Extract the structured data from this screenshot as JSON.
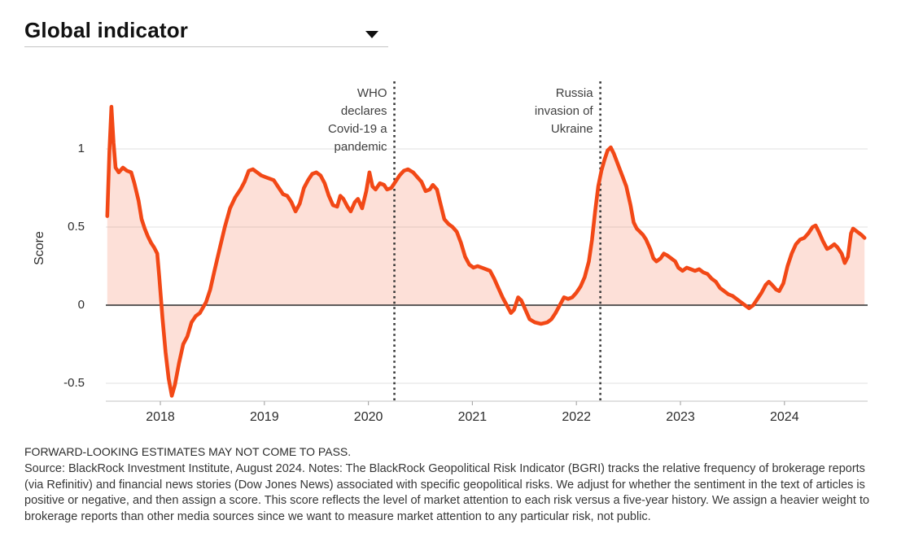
{
  "header": {
    "title": "Global indicator"
  },
  "footer": {
    "disclaimer": "FORWARD-LOOKING ESTIMATES MAY NOT COME TO PASS.",
    "notes": "Source: BlackRock Investment Institute, August 2024. Notes: The BlackRock Geopolitical Risk Indicator (BGRI) tracks the relative frequency of brokerage reports (via Refinitiv) and financial news stories (Dow Jones News) associated with specific geopolitical risks. We adjust for whether the sentiment in the text of articles is positive or negative, and then assign a score. This score reflects the level of market attention to each risk versus a five-year history. We assign a heavier weight to brokerage reports than other media sources since we want to measure market attention to any particular risk, not public."
  },
  "chart_data": {
    "type": "area",
    "title": "Global indicator",
    "xlabel": "",
    "ylabel": "Score",
    "x_range": [
      2017.45,
      2024.85
    ],
    "y_range": [
      -0.62,
      1.44
    ],
    "grid": "horizontal",
    "legend_position": "none",
    "x_ticks": [
      2018,
      2019,
      2020,
      2021,
      2022,
      2023,
      2024
    ],
    "y_ticks": [
      {
        "label": "1",
        "value": 1
      },
      {
        "label": "0.5",
        "value": 0.5
      },
      {
        "label": "0",
        "value": 0
      },
      {
        "label": "-0.5",
        "value": -0.5
      }
    ],
    "line_color": "#f24816",
    "fill_opacity": 0.17,
    "annotations": [
      {
        "label": "WHO\ndeclares\nCovid-19 a\npandemic",
        "x": 2020.25
      },
      {
        "label": "Russia\ninvasion of\nUkraine",
        "x": 2022.23
      }
    ],
    "series": [
      {
        "name": "Global indicator",
        "points": [
          [
            2017.49,
            0.57
          ],
          [
            2017.51,
            0.98
          ],
          [
            2017.53,
            1.27
          ],
          [
            2017.55,
            1.04
          ],
          [
            2017.57,
            0.88
          ],
          [
            2017.6,
            0.85
          ],
          [
            2017.64,
            0.88
          ],
          [
            2017.68,
            0.86
          ],
          [
            2017.72,
            0.85
          ],
          [
            2017.75,
            0.78
          ],
          [
            2017.79,
            0.67
          ],
          [
            2017.82,
            0.55
          ],
          [
            2017.85,
            0.49
          ],
          [
            2017.88,
            0.44
          ],
          [
            2017.91,
            0.4
          ],
          [
            2017.94,
            0.37
          ],
          [
            2017.97,
            0.33
          ],
          [
            2017.99,
            0.18
          ],
          [
            2018.02,
            -0.08
          ],
          [
            2018.05,
            -0.3
          ],
          [
            2018.08,
            -0.47
          ],
          [
            2018.11,
            -0.58
          ],
          [
            2018.14,
            -0.51
          ],
          [
            2018.18,
            -0.37
          ],
          [
            2018.22,
            -0.25
          ],
          [
            2018.26,
            -0.2
          ],
          [
            2018.3,
            -0.11
          ],
          [
            2018.34,
            -0.07
          ],
          [
            2018.38,
            -0.05
          ],
          [
            2018.44,
            0.02
          ],
          [
            2018.48,
            0.1
          ],
          [
            2018.52,
            0.22
          ],
          [
            2018.57,
            0.36
          ],
          [
            2018.62,
            0.5
          ],
          [
            2018.67,
            0.62
          ],
          [
            2018.72,
            0.69
          ],
          [
            2018.77,
            0.74
          ],
          [
            2018.81,
            0.79
          ],
          [
            2018.85,
            0.86
          ],
          [
            2018.89,
            0.87
          ],
          [
            2018.93,
            0.85
          ],
          [
            2018.97,
            0.83
          ],
          [
            2019.01,
            0.82
          ],
          [
            2019.05,
            0.81
          ],
          [
            2019.09,
            0.8
          ],
          [
            2019.13,
            0.76
          ],
          [
            2019.18,
            0.71
          ],
          [
            2019.22,
            0.7
          ],
          [
            2019.26,
            0.66
          ],
          [
            2019.3,
            0.6
          ],
          [
            2019.34,
            0.65
          ],
          [
            2019.38,
            0.75
          ],
          [
            2019.42,
            0.8
          ],
          [
            2019.46,
            0.84
          ],
          [
            2019.5,
            0.85
          ],
          [
            2019.54,
            0.83
          ],
          [
            2019.58,
            0.78
          ],
          [
            2019.62,
            0.7
          ],
          [
            2019.66,
            0.64
          ],
          [
            2019.7,
            0.63
          ],
          [
            2019.73,
            0.7
          ],
          [
            2019.76,
            0.68
          ],
          [
            2019.8,
            0.63
          ],
          [
            2019.83,
            0.6
          ],
          [
            2019.87,
            0.66
          ],
          [
            2019.9,
            0.68
          ],
          [
            2019.94,
            0.62
          ],
          [
            2019.98,
            0.73
          ],
          [
            2020.01,
            0.85
          ],
          [
            2020.04,
            0.76
          ],
          [
            2020.07,
            0.74
          ],
          [
            2020.11,
            0.78
          ],
          [
            2020.15,
            0.77
          ],
          [
            2020.18,
            0.74
          ],
          [
            2020.22,
            0.75
          ],
          [
            2020.26,
            0.79
          ],
          [
            2020.3,
            0.83
          ],
          [
            2020.34,
            0.86
          ],
          [
            2020.38,
            0.87
          ],
          [
            2020.43,
            0.85
          ],
          [
            2020.47,
            0.82
          ],
          [
            2020.51,
            0.79
          ],
          [
            2020.55,
            0.73
          ],
          [
            2020.59,
            0.74
          ],
          [
            2020.62,
            0.77
          ],
          [
            2020.66,
            0.74
          ],
          [
            2020.7,
            0.63
          ],
          [
            2020.73,
            0.55
          ],
          [
            2020.77,
            0.52
          ],
          [
            2020.81,
            0.5
          ],
          [
            2020.85,
            0.47
          ],
          [
            2020.89,
            0.4
          ],
          [
            2020.93,
            0.31
          ],
          [
            2020.97,
            0.26
          ],
          [
            2021.01,
            0.24
          ],
          [
            2021.05,
            0.25
          ],
          [
            2021.09,
            0.24
          ],
          [
            2021.13,
            0.23
          ],
          [
            2021.17,
            0.22
          ],
          [
            2021.21,
            0.17
          ],
          [
            2021.25,
            0.11
          ],
          [
            2021.29,
            0.05
          ],
          [
            2021.33,
            0.0
          ],
          [
            2021.37,
            -0.05
          ],
          [
            2021.4,
            -0.03
          ],
          [
            2021.44,
            0.05
          ],
          [
            2021.47,
            0.03
          ],
          [
            2021.51,
            -0.03
          ],
          [
            2021.55,
            -0.09
          ],
          [
            2021.6,
            -0.11
          ],
          [
            2021.66,
            -0.12
          ],
          [
            2021.72,
            -0.11
          ],
          [
            2021.76,
            -0.09
          ],
          [
            2021.8,
            -0.05
          ],
          [
            2021.84,
            0.0
          ],
          [
            2021.88,
            0.05
          ],
          [
            2021.92,
            0.04
          ],
          [
            2021.96,
            0.05
          ],
          [
            2022.0,
            0.08
          ],
          [
            2022.04,
            0.12
          ],
          [
            2022.08,
            0.18
          ],
          [
            2022.12,
            0.28
          ],
          [
            2022.15,
            0.42
          ],
          [
            2022.18,
            0.6
          ],
          [
            2022.21,
            0.76
          ],
          [
            2022.24,
            0.86
          ],
          [
            2022.27,
            0.93
          ],
          [
            2022.3,
            0.99
          ],
          [
            2022.33,
            1.01
          ],
          [
            2022.36,
            0.97
          ],
          [
            2022.4,
            0.9
          ],
          [
            2022.44,
            0.83
          ],
          [
            2022.48,
            0.76
          ],
          [
            2022.52,
            0.64
          ],
          [
            2022.55,
            0.53
          ],
          [
            2022.58,
            0.49
          ],
          [
            2022.61,
            0.47
          ],
          [
            2022.64,
            0.45
          ],
          [
            2022.67,
            0.42
          ],
          [
            2022.71,
            0.36
          ],
          [
            2022.74,
            0.3
          ],
          [
            2022.77,
            0.28
          ],
          [
            2022.81,
            0.3
          ],
          [
            2022.84,
            0.33
          ],
          [
            2022.87,
            0.32
          ],
          [
            2022.91,
            0.3
          ],
          [
            2022.95,
            0.28
          ],
          [
            2022.98,
            0.24
          ],
          [
            2023.02,
            0.22
          ],
          [
            2023.06,
            0.24
          ],
          [
            2023.1,
            0.23
          ],
          [
            2023.14,
            0.22
          ],
          [
            2023.18,
            0.23
          ],
          [
            2023.22,
            0.21
          ],
          [
            2023.26,
            0.2
          ],
          [
            2023.3,
            0.17
          ],
          [
            2023.34,
            0.15
          ],
          [
            2023.38,
            0.11
          ],
          [
            2023.42,
            0.09
          ],
          [
            2023.46,
            0.07
          ],
          [
            2023.5,
            0.06
          ],
          [
            2023.54,
            0.04
          ],
          [
            2023.58,
            0.02
          ],
          [
            2023.62,
            0.0
          ],
          [
            2023.66,
            -0.02
          ],
          [
            2023.7,
            0.0
          ],
          [
            2023.74,
            0.04
          ],
          [
            2023.78,
            0.08
          ],
          [
            2023.82,
            0.13
          ],
          [
            2023.85,
            0.15
          ],
          [
            2023.88,
            0.13
          ],
          [
            2023.92,
            0.1
          ],
          [
            2023.95,
            0.09
          ],
          [
            2023.99,
            0.14
          ],
          [
            2024.03,
            0.25
          ],
          [
            2024.07,
            0.33
          ],
          [
            2024.11,
            0.39
          ],
          [
            2024.15,
            0.42
          ],
          [
            2024.19,
            0.43
          ],
          [
            2024.23,
            0.46
          ],
          [
            2024.27,
            0.5
          ],
          [
            2024.3,
            0.51
          ],
          [
            2024.33,
            0.47
          ],
          [
            2024.37,
            0.41
          ],
          [
            2024.41,
            0.36
          ],
          [
            2024.44,
            0.37
          ],
          [
            2024.48,
            0.39
          ],
          [
            2024.51,
            0.37
          ],
          [
            2024.55,
            0.33
          ],
          [
            2024.58,
            0.27
          ],
          [
            2024.61,
            0.31
          ],
          [
            2024.64,
            0.46
          ],
          [
            2024.66,
            0.49
          ],
          [
            2024.7,
            0.47
          ],
          [
            2024.74,
            0.45
          ],
          [
            2024.77,
            0.43
          ]
        ]
      }
    ]
  }
}
